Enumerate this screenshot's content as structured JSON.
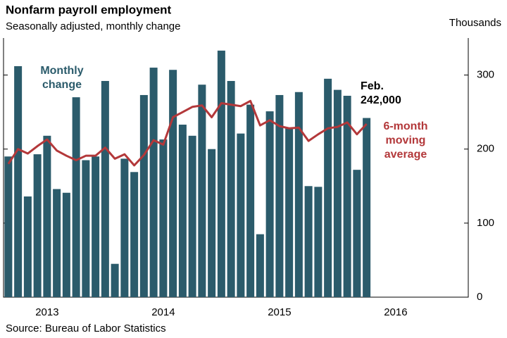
{
  "chart_data": {
    "type": "bar",
    "title": "Nonfarm payroll employment",
    "subtitle": "Seasonally adjusted, monthly change",
    "y_axis_label": "Thousands",
    "source": "Source: Bureau of Labor Statistics",
    "categories": [
      null,
      null,
      null,
      null,
      "2013",
      null,
      null,
      null,
      null,
      null,
      null,
      null,
      null,
      null,
      null,
      null,
      "2014",
      null,
      null,
      null,
      null,
      null,
      null,
      null,
      null,
      null,
      null,
      null,
      "2015",
      null,
      null,
      null,
      null,
      null,
      null,
      null,
      null,
      null,
      null,
      null,
      "2016",
      null,
      null,
      null,
      null,
      null,
      null,
      null
    ],
    "series": [
      {
        "name": "Monthly change",
        "type": "bar",
        "color": "#2b5b6b",
        "values": [
          190,
          312,
          136,
          193,
          218,
          146,
          141,
          270,
          185,
          190,
          292,
          45,
          187,
          169,
          273,
          310,
          213,
          307,
          233,
          218,
          287,
          200,
          333,
          292,
          221,
          260,
          85,
          251,
          273,
          228,
          277,
          150,
          149,
          295,
          280,
          272,
          172,
          242,
          null,
          null,
          null,
          null,
          null,
          null,
          null,
          null,
          null,
          null
        ]
      },
      {
        "name": "6-month moving average",
        "type": "line",
        "color": "#b3383a",
        "values": [
          180,
          200,
          194,
          204,
          213,
          198,
          191,
          185,
          191,
          191,
          202,
          187,
          193,
          178,
          192,
          212,
          206,
          243,
          250,
          257,
          259,
          243,
          262,
          260,
          258,
          265,
          232,
          239,
          231,
          228,
          229,
          211,
          220,
          228,
          230,
          236,
          220,
          234,
          null,
          null,
          null,
          null,
          null,
          null,
          null,
          null,
          null,
          null
        ]
      }
    ],
    "annotations": [
      {
        "lines": [
          "Monthly",
          "change"
        ],
        "color": "#2b5b6b"
      },
      {
        "lines": [
          "Feb.",
          "242,000"
        ],
        "color": "#000000"
      },
      {
        "lines": [
          "6-month",
          "moving",
          "average"
        ],
        "color": "#b3383a"
      }
    ],
    "ylim": [
      0,
      350
    ],
    "yticks": [
      0,
      100,
      200,
      300
    ],
    "y_axis_side": "right",
    "grid": false
  }
}
